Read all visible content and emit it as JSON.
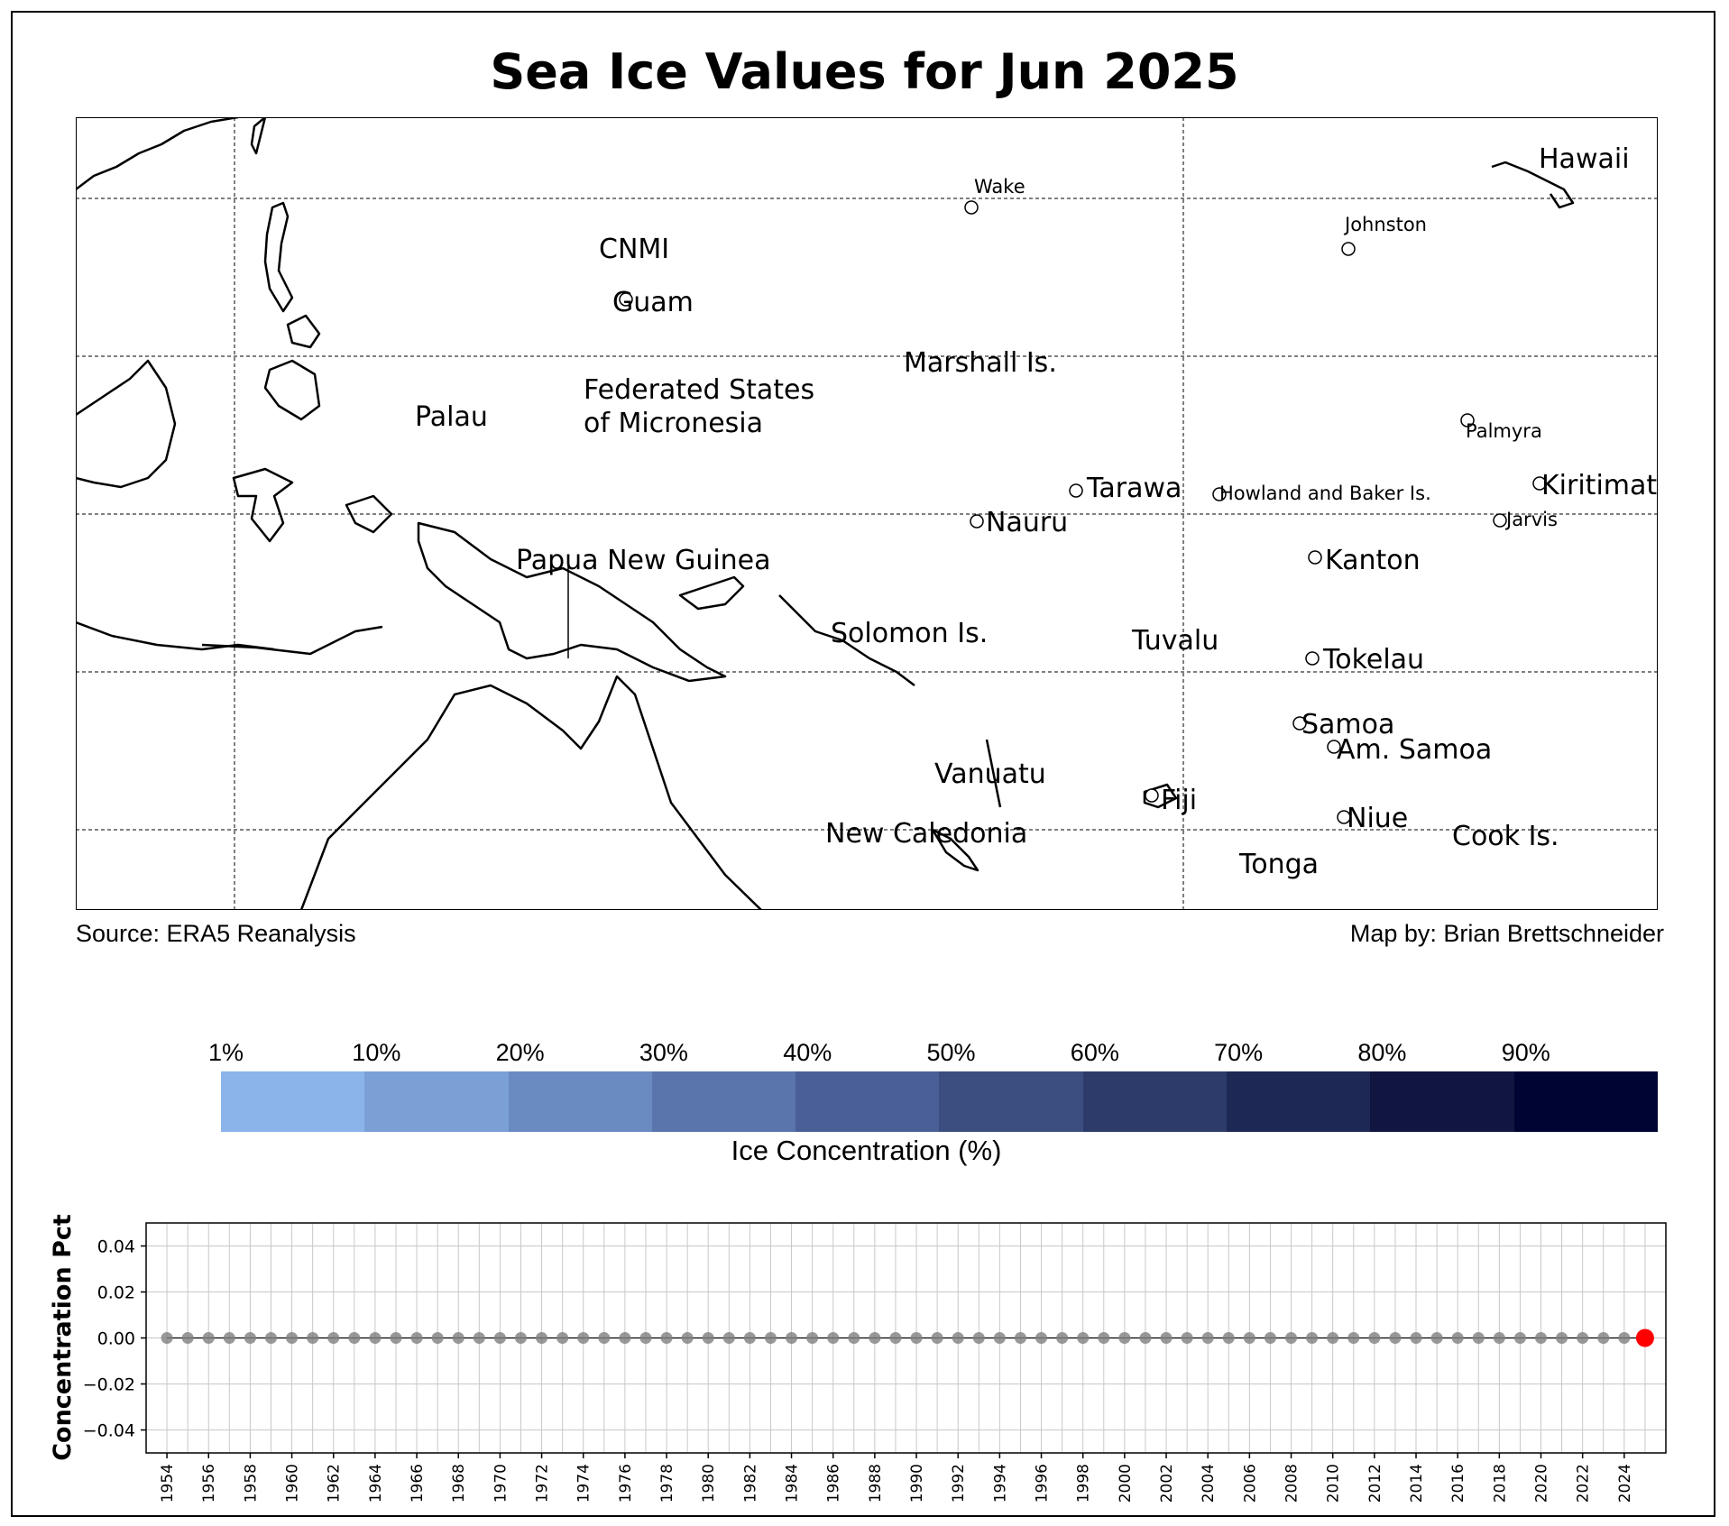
{
  "title": "Sea Ice Values for Jun 2025",
  "source": "Source: ERA5 Reanalysis",
  "map_by": "Map by: Brian Brettschneider",
  "map_labels": [
    {
      "text": "Hawaii",
      "size": "large",
      "marker": false
    },
    {
      "text": "Wake",
      "size": "small",
      "marker": true
    },
    {
      "text": "Johnston",
      "size": "small",
      "marker": true
    },
    {
      "text": "CNMI",
      "size": "large",
      "marker": false
    },
    {
      "text": "Guam",
      "size": "large",
      "marker": true
    },
    {
      "text": "Marshall Is.",
      "size": "large",
      "marker": false
    },
    {
      "text": "Federated States",
      "size": "large",
      "marker": false
    },
    {
      "text": "of Micronesia",
      "size": "large",
      "marker": false
    },
    {
      "text": "Palau",
      "size": "large",
      "marker": false
    },
    {
      "text": "Palmyra",
      "size": "small",
      "marker": true
    },
    {
      "text": "Kiritimati",
      "size": "large",
      "marker": true
    },
    {
      "text": "Tarawa",
      "size": "large",
      "marker": true
    },
    {
      "text": "Howland and Baker Is.",
      "size": "small",
      "marker": true
    },
    {
      "text": "Jarvis",
      "size": "small",
      "marker": true
    },
    {
      "text": "Nauru",
      "size": "large",
      "marker": true
    },
    {
      "text": "Papua New Guinea",
      "size": "large",
      "marker": false
    },
    {
      "text": "Kanton",
      "size": "large",
      "marker": true
    },
    {
      "text": "Solomon Is.",
      "size": "large",
      "marker": false
    },
    {
      "text": "Tuvalu",
      "size": "large",
      "marker": false
    },
    {
      "text": "Tokelau",
      "size": "large",
      "marker": true
    },
    {
      "text": "Samoa",
      "size": "large",
      "marker": true
    },
    {
      "text": "Am. Samoa",
      "size": "large",
      "marker": true
    },
    {
      "text": "Vanuatu",
      "size": "large",
      "marker": false
    },
    {
      "text": "Fiji",
      "size": "large",
      "marker": true
    },
    {
      "text": "Niue",
      "size": "large",
      "marker": true
    },
    {
      "text": "New Caledonia",
      "size": "large",
      "marker": false
    },
    {
      "text": "Cook Is.",
      "size": "large",
      "marker": false
    },
    {
      "text": "Tonga",
      "size": "large",
      "marker": false
    }
  ],
  "colorbar": {
    "label": "Ice Concentration (%)",
    "ticks": [
      "1%",
      "10%",
      "20%",
      "30%",
      "40%",
      "50%",
      "60%",
      "70%",
      "80%",
      "90%"
    ],
    "colors": [
      "#8ab4ea",
      "#7aa0d6",
      "#6a8ac2",
      "#5a75ab",
      "#4a5f95",
      "#3c4d80",
      "#2d3b6a",
      "#1e2855",
      "#111641",
      "#000433"
    ]
  },
  "chart_data": {
    "type": "scatter",
    "title": "",
    "xlabel": "",
    "ylabel": "Concentration Pct",
    "ylim": [
      -0.05,
      0.05
    ],
    "xlim": [
      1953,
      2026
    ],
    "yticks": [
      "0.04",
      "0.02",
      "0.00",
      "−0.02",
      "−0.04"
    ],
    "ytick_values": [
      0.04,
      0.02,
      0.0,
      -0.02,
      -0.04
    ],
    "xticks": [
      "1954",
      "1956",
      "1958",
      "1960",
      "1962",
      "1964",
      "1966",
      "1968",
      "1970",
      "1972",
      "1974",
      "1976",
      "1978",
      "1980",
      "1982",
      "1984",
      "1986",
      "1988",
      "1990",
      "1992",
      "1994",
      "1996",
      "1998",
      "2000",
      "2002",
      "2004",
      "2006",
      "2008",
      "2010",
      "2012",
      "2014",
      "2016",
      "2018",
      "2020",
      "2022",
      "2024"
    ],
    "grid": true,
    "series": [
      {
        "x": [
          1954,
          1955,
          1956,
          1957,
          1958,
          1959,
          1960,
          1961,
          1962,
          1963,
          1964,
          1965,
          1966,
          1967,
          1968,
          1969,
          1970,
          1971,
          1972,
          1973,
          1974,
          1975,
          1976,
          1977,
          1978,
          1979,
          1980,
          1981,
          1982,
          1983,
          1984,
          1985,
          1986,
          1987,
          1988,
          1989,
          1990,
          1991,
          1992,
          1993,
          1994,
          1995,
          1996,
          1997,
          1998,
          1999,
          2000,
          2001,
          2002,
          2003,
          2004,
          2005,
          2006,
          2007,
          2008,
          2009,
          2010,
          2011,
          2012,
          2013,
          2014,
          2015,
          2016,
          2017,
          2018,
          2019,
          2020,
          2021,
          2022,
          2023,
          2024
        ],
        "values": [
          0,
          0,
          0,
          0,
          0,
          0,
          0,
          0,
          0,
          0,
          0,
          0,
          0,
          0,
          0,
          0,
          0,
          0,
          0,
          0,
          0,
          0,
          0,
          0,
          0,
          0,
          0,
          0,
          0,
          0,
          0,
          0,
          0,
          0,
          0,
          0,
          0,
          0,
          0,
          0,
          0,
          0,
          0,
          0,
          0,
          0,
          0,
          0,
          0,
          0,
          0,
          0,
          0,
          0,
          0,
          0,
          0,
          0,
          0,
          0,
          0,
          0,
          0,
          0,
          0,
          0,
          0,
          0,
          0,
          0,
          0
        ],
        "color": "#808080"
      },
      {
        "x": [
          2025
        ],
        "values": [
          0
        ],
        "color": "#ff0000"
      }
    ]
  }
}
